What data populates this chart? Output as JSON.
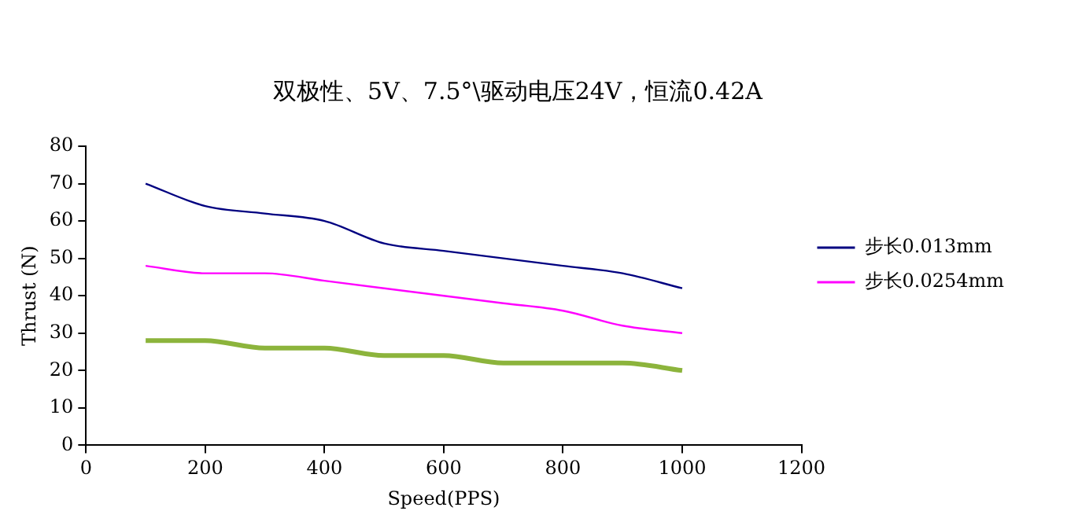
{
  "chart_data": {
    "type": "line",
    "title": "双极性、5V、7.5°\\驱动电压24V，恒流0.42A",
    "xlabel": "Speed(PPS)",
    "ylabel": "Thrust (N)",
    "x": [
      100,
      200,
      300,
      400,
      500,
      600,
      700,
      800,
      900,
      1000
    ],
    "series": [
      {
        "name": "步长0.013mm",
        "color": "#000080",
        "values": [
          70,
          64,
          62,
          60,
          54,
          52,
          50,
          48,
          46,
          42
        ]
      },
      {
        "name": "步长0.0254mm",
        "color": "#ff00ff",
        "values": [
          48,
          46,
          46,
          44,
          42,
          40,
          38,
          36,
          32,
          30
        ]
      },
      {
        "color": "#8cb43c",
        "values": [
          28,
          28,
          26,
          26,
          24,
          24,
          22,
          22,
          22,
          20
        ]
      }
    ],
    "xlim": [
      0,
      1200
    ],
    "xticks": [
      0,
      200,
      400,
      600,
      800,
      1000,
      1200
    ],
    "ylim": [
      0,
      80
    ],
    "yticks": [
      0,
      10,
      20,
      30,
      40,
      50,
      60,
      70,
      80
    ],
    "grid": false,
    "legend": "right",
    "marker": "none",
    "line_style": "solid"
  }
}
